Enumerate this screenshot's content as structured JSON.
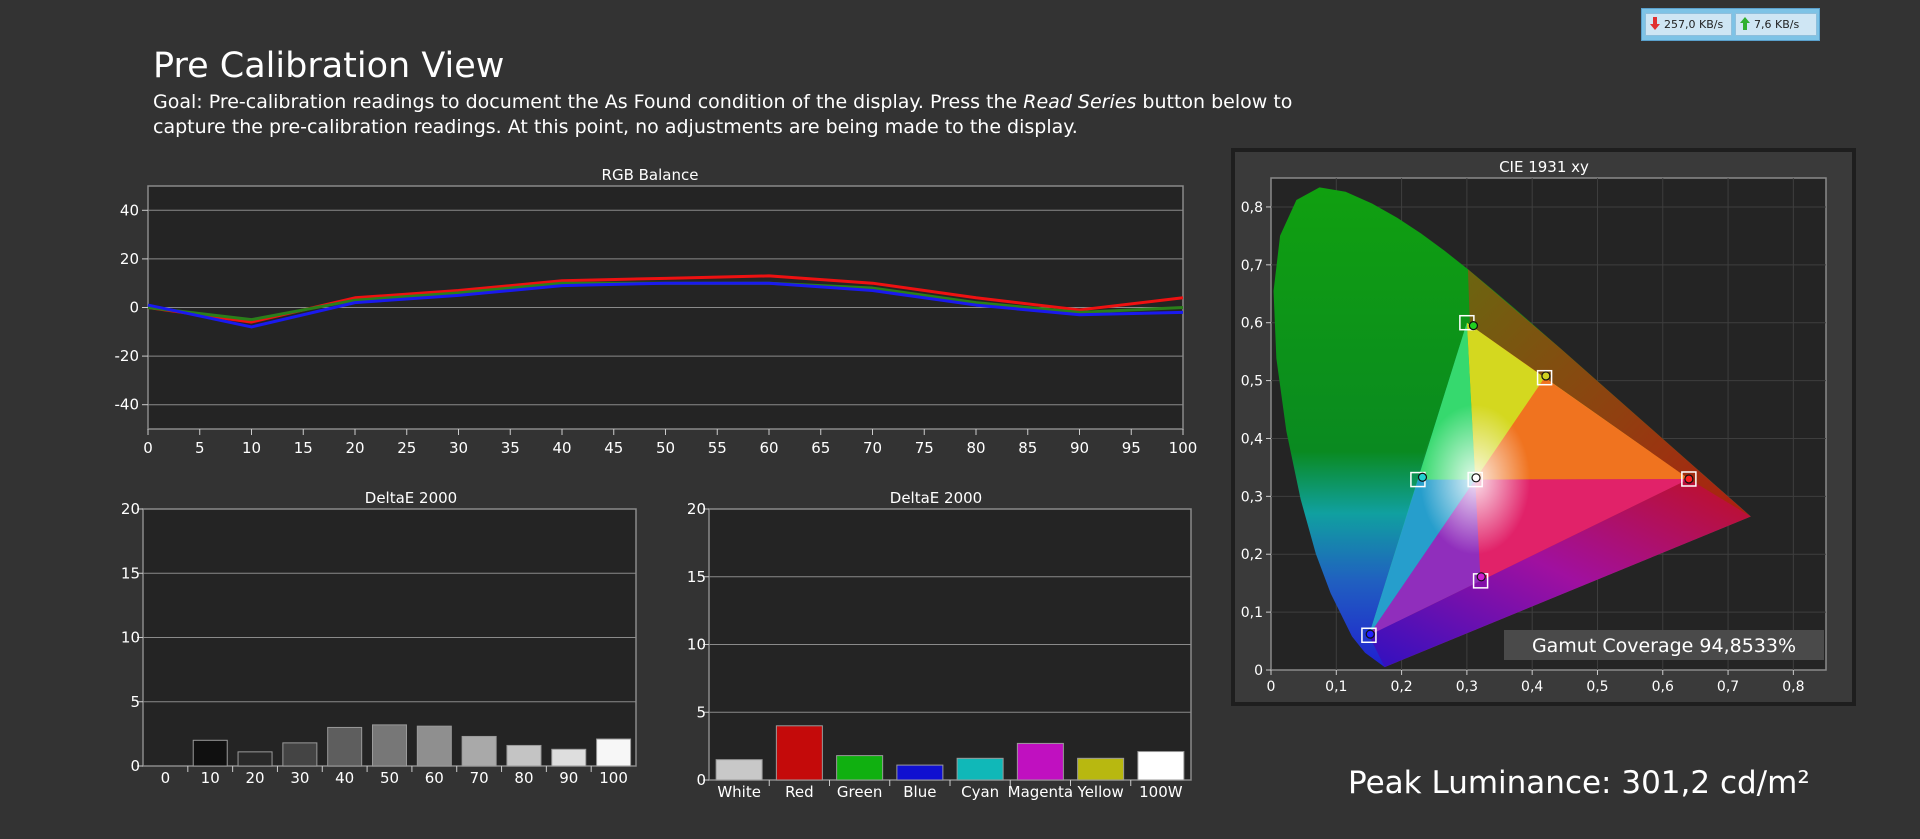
{
  "page": {
    "title": "Pre Calibration View",
    "goal_prefix": "Goal: Pre-calibration readings to document the As Found condition of the display. Press the ",
    "goal_emphasis": "Read Series",
    "goal_suffix": " button below to capture the pre-calibration readings. At this point, no adjustments are being made to the display.",
    "peak_luminance": "Peak Luminance: 301,2 cd/m²"
  },
  "network": {
    "download": "257,0 KB/s",
    "upload": "7,6 KB/s",
    "download_icon": "arrow-down-icon",
    "upload_icon": "arrow-up-icon"
  },
  "chart_data": [
    {
      "id": "rgb",
      "type": "line",
      "title": "RGB Balance",
      "x": [
        0,
        10,
        20,
        30,
        40,
        50,
        60,
        70,
        80,
        90,
        100
      ],
      "xticks": [
        0,
        5,
        10,
        15,
        20,
        25,
        30,
        35,
        40,
        45,
        50,
        55,
        60,
        65,
        70,
        75,
        80,
        85,
        90,
        95,
        100
      ],
      "yticks": [
        40,
        20,
        0,
        -20,
        -40
      ],
      "xlim": [
        0,
        100
      ],
      "ylim": [
        -50,
        50
      ],
      "grid": true,
      "series": [
        {
          "color": "#ee1111",
          "values": [
            0,
            -6,
            4,
            7,
            11,
            12,
            13,
            10,
            4,
            -1,
            4
          ]
        },
        {
          "color": "#2a7f1a",
          "values": [
            0,
            -5,
            3,
            6,
            10,
            10,
            10,
            8,
            2,
            -2,
            0
          ]
        },
        {
          "color": "#1a1aee",
          "values": [
            1,
            -8,
            2,
            5,
            9,
            10,
            10,
            7,
            1,
            -3,
            -2
          ]
        }
      ]
    },
    {
      "id": "de_gray",
      "type": "bar",
      "title": "DeltaE 2000",
      "categories": [
        "0",
        "10",
        "20",
        "30",
        "40",
        "50",
        "60",
        "70",
        "80",
        "90",
        "100"
      ],
      "values": [
        0,
        2.0,
        1.1,
        1.8,
        3.0,
        3.2,
        3.1,
        2.3,
        1.6,
        1.3,
        2.1
      ],
      "colors": [
        "#000000",
        "#101010",
        "#2a2a2a",
        "#444444",
        "#5e5e5e",
        "#777777",
        "#8f8f8f",
        "#a9a9a9",
        "#c4c4c4",
        "#dedede",
        "#f7f7f7"
      ],
      "yticks": [
        20,
        15,
        10,
        5,
        0
      ],
      "ylim": [
        0,
        20
      ],
      "grid": true
    },
    {
      "id": "de_color",
      "type": "bar",
      "title": "DeltaE 2000",
      "categories": [
        "White",
        "Red",
        "Green",
        "Blue",
        "Cyan",
        "Magenta",
        "Yellow",
        "100W"
      ],
      "values": [
        1.5,
        4.0,
        1.8,
        1.1,
        1.6,
        2.7,
        1.6,
        2.1
      ],
      "colors": [
        "#c8c8c8",
        "#c40a0a",
        "#10b010",
        "#1010d0",
        "#10b8b8",
        "#c010c0",
        "#b8b810",
        "#ffffff"
      ],
      "yticks": [
        20,
        15,
        10,
        5,
        0
      ],
      "ylim": [
        0,
        20
      ],
      "grid": true
    },
    {
      "id": "cie",
      "type": "scatter",
      "title": "CIE 1931 xy",
      "xticks": [
        0,
        0.1,
        0.2,
        0.3,
        0.4,
        0.5,
        0.6,
        0.7,
        0.8
      ],
      "yticks": [
        0,
        0.1,
        0.2,
        0.3,
        0.4,
        0.5,
        0.6,
        0.7,
        0.8
      ],
      "tick_labels_x": [
        "0",
        "0,1",
        "0,2",
        "0,3",
        "0,4",
        "0,5",
        "0,6",
        "0,7",
        "0,8"
      ],
      "tick_labels_y": [
        "0",
        "0,1",
        "0,2",
        "0,3",
        "0,4",
        "0,5",
        "0,6",
        "0,7",
        "0,8"
      ],
      "xlim": [
        0,
        0.85
      ],
      "ylim": [
        0,
        0.85
      ],
      "targets": [
        {
          "x": 0.64,
          "y": 0.33
        },
        {
          "x": 0.3,
          "y": 0.6
        },
        {
          "x": 0.15,
          "y": 0.06
        },
        {
          "x": 0.225,
          "y": 0.329
        },
        {
          "x": 0.321,
          "y": 0.154
        },
        {
          "x": 0.419,
          "y": 0.505
        },
        {
          "x": 0.3127,
          "y": 0.329
        }
      ],
      "measured": [
        {
          "x": 0.64,
          "y": 0.33,
          "color": "#ff2020"
        },
        {
          "x": 0.31,
          "y": 0.595,
          "color": "#20d020"
        },
        {
          "x": 0.152,
          "y": 0.062,
          "color": "#2020ff"
        },
        {
          "x": 0.232,
          "y": 0.333,
          "color": "#20d0d0"
        },
        {
          "x": 0.322,
          "y": 0.161,
          "color": "#d020d0"
        },
        {
          "x": 0.421,
          "y": 0.508,
          "color": "#d0d020"
        },
        {
          "x": 0.314,
          "y": 0.332,
          "color": "#ffffff"
        }
      ],
      "gamut_coverage": "Gamut Coverage 94,8533%"
    }
  ]
}
